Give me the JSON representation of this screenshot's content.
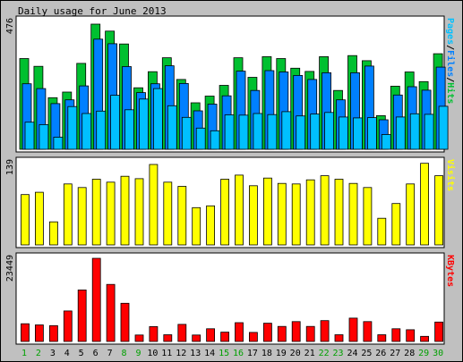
{
  "chart_data": {
    "type": "bar",
    "title": "Daily usage for June 2013",
    "categories": [
      "1",
      "2",
      "3",
      "4",
      "5",
      "6",
      "7",
      "8",
      "9",
      "10",
      "11",
      "12",
      "13",
      "14",
      "15",
      "16",
      "17",
      "18",
      "19",
      "20",
      "21",
      "22",
      "23",
      "24",
      "25",
      "26",
      "27",
      "28",
      "29",
      "30"
    ],
    "weekend_days": [
      "1",
      "2",
      "8",
      "9",
      "15",
      "16",
      "22",
      "23",
      "29",
      "30"
    ],
    "colors": {
      "background": "#C0C0C0",
      "panel": "#FFFFFF",
      "hits": "#00C030",
      "files": "#0080FF",
      "pages": "#00C0FF",
      "visits": "#FFFF00",
      "kbytes": "#FF0000",
      "weekday_label": "#000000",
      "weekend_label": "#00A000"
    },
    "panels": [
      {
        "id": "hits-files-pages",
        "ymax_label": "476",
        "ylim": [
          0,
          476
        ],
        "ylabel_parts": [
          {
            "text": "Pages",
            "color": "#00C0FF"
          },
          {
            "text": "/",
            "color": "#000000"
          },
          {
            "text": "Files",
            "color": "#0080FF"
          },
          {
            "text": "/",
            "color": "#000000"
          },
          {
            "text": "Hits",
            "color": "#00C030"
          }
        ],
        "series": [
          {
            "name": "Hits",
            "values": [
              338,
              309,
              192,
              213,
              320,
              466,
              440,
              392,
              229,
              289,
              341,
              260,
              173,
              198,
              238,
              341,
              268,
              345,
              338,
              302,
              290,
              345,
              219,
              349,
              330,
              125,
              235,
              288,
              252,
              356
            ]
          },
          {
            "name": "Files",
            "values": [
              244,
              226,
              170,
              184,
              236,
              410,
              393,
              308,
              211,
              244,
              311,
              245,
              143,
              168,
              199,
              291,
              219,
              293,
              288,
              275,
              260,
              285,
              184,
              285,
              310,
              110,
              202,
              233,
              220,
              306
            ]
          },
          {
            "name": "Pages",
            "values": [
              101,
              92,
              45,
              159,
              133,
              142,
              201,
              147,
              187,
              226,
              162,
              119,
              79,
              69,
              128,
              127,
              133,
              129,
              140,
              124,
              131,
              137,
              120,
              117,
              118,
              55,
              120,
              132,
              130,
              160
            ]
          }
        ]
      },
      {
        "id": "visits",
        "ymax_label": "139",
        "ylim": [
          0,
          139
        ],
        "ylabel_parts": [
          {
            "text": "Visits",
            "color": "#FFFF00"
          }
        ],
        "series": [
          {
            "name": "Visits",
            "values": [
              85,
              89,
              39,
              103,
              97,
              111,
              106,
              116,
              112,
              136,
              106,
              99,
              63,
              66,
              111,
              118,
              100,
              113,
              104,
              103,
              110,
              117,
              111,
              104,
              97,
              45,
              70,
              103,
              138,
              117
            ]
          }
        ]
      },
      {
        "id": "kbytes",
        "ymax_label": "23449",
        "ylim": [
          0,
          23449
        ],
        "ylabel_parts": [
          {
            "text": "KBytes",
            "color": "#FF0000"
          }
        ],
        "series": [
          {
            "name": "KBytes",
            "values": [
              5004,
              4670,
              4474,
              8607,
              14519,
              23449,
              16082,
              10756,
              1815,
              4189,
              1880,
              4813,
              1815,
              3574,
              2620,
              5305,
              2549,
              5149,
              4237,
              5596,
              4237,
              5868,
              1880,
              6588,
              5596,
              1880,
              3574,
              3308,
              1449,
              5475
            ]
          }
        ]
      }
    ]
  }
}
